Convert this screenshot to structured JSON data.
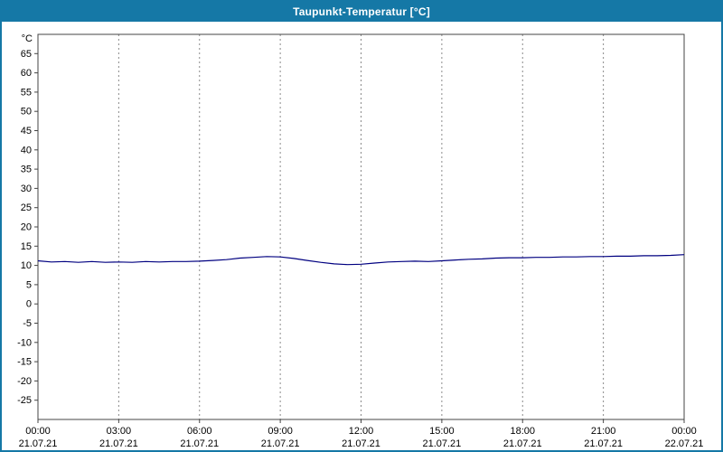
{
  "window": {
    "title": "Taupunkt-Temperatur [°C]"
  },
  "colors": {
    "titlebar_bg": "#1578A6",
    "titlebar_text": "#FFFFFF",
    "window_border": "#1578A6",
    "plot_border": "#444444",
    "grid": "#8a8a8a",
    "line": "#000080",
    "text": "#000000",
    "background": "#FFFFFF"
  },
  "chart_data": {
    "type": "line",
    "title": "Taupunkt-Temperatur [°C]",
    "ylabel": "°C",
    "xlabel": "",
    "ylim": [
      -30,
      70
    ],
    "yticks": [
      65,
      60,
      55,
      50,
      45,
      40,
      35,
      30,
      25,
      20,
      15,
      10,
      5,
      0,
      -5,
      -10,
      -15,
      -20,
      -25
    ],
    "grid": "vertical-dashed",
    "legend": "none",
    "xticks": [
      {
        "hour": 0,
        "time": "00:00",
        "date": "21.07.21"
      },
      {
        "hour": 3,
        "time": "03:00",
        "date": "21.07.21"
      },
      {
        "hour": 6,
        "time": "06:00",
        "date": "21.07.21"
      },
      {
        "hour": 9,
        "time": "09:00",
        "date": "21.07.21"
      },
      {
        "hour": 12,
        "time": "12:00",
        "date": "21.07.21"
      },
      {
        "hour": 15,
        "time": "15:00",
        "date": "21.07.21"
      },
      {
        "hour": 18,
        "time": "18:00",
        "date": "21.07.21"
      },
      {
        "hour": 21,
        "time": "21:00",
        "date": "21.07.21"
      },
      {
        "hour": 24,
        "time": "00:00",
        "date": "22.07.21"
      }
    ],
    "series": [
      {
        "name": "Taupunkt",
        "x_hours": [
          0,
          0.5,
          1,
          1.5,
          2,
          2.5,
          3,
          3.5,
          4,
          4.5,
          5,
          5.5,
          6,
          6.5,
          7,
          7.5,
          8,
          8.5,
          9,
          9.5,
          10,
          10.5,
          11,
          11.5,
          12,
          12.5,
          13,
          13.5,
          14,
          14.5,
          15,
          15.5,
          16,
          16.5,
          17,
          17.5,
          18,
          18.5,
          19,
          19.5,
          20,
          20.5,
          21,
          21.5,
          22,
          22.5,
          23,
          23.5,
          24
        ],
        "values": [
          11.2,
          10.9,
          11.0,
          10.8,
          11.0,
          10.8,
          10.9,
          10.8,
          11.0,
          10.9,
          11.0,
          11.0,
          11.1,
          11.3,
          11.5,
          11.9,
          12.1,
          12.3,
          12.2,
          11.8,
          11.3,
          10.8,
          10.4,
          10.2,
          10.3,
          10.6,
          10.9,
          11.0,
          11.1,
          11.0,
          11.2,
          11.4,
          11.6,
          11.7,
          11.9,
          12.0,
          12.0,
          12.1,
          12.1,
          12.2,
          12.2,
          12.3,
          12.3,
          12.4,
          12.4,
          12.5,
          12.5,
          12.6,
          12.8
        ]
      }
    ]
  }
}
